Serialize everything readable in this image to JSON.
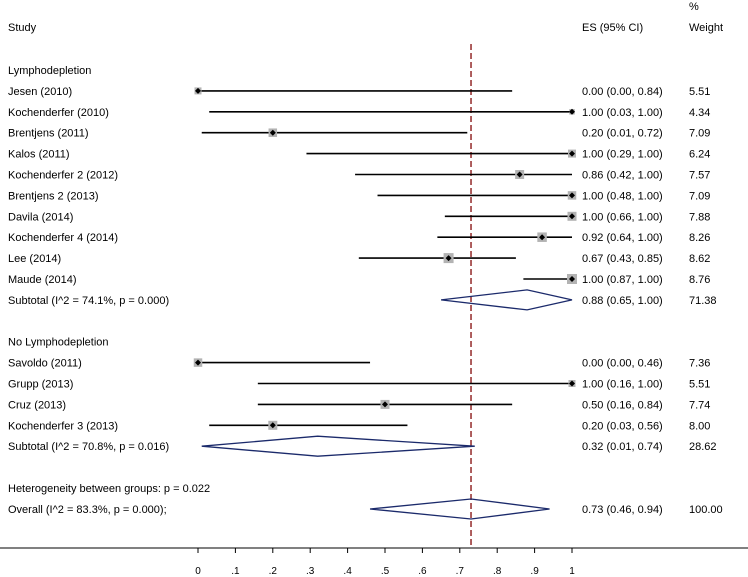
{
  "chart_data": {
    "type": "forest",
    "header": {
      "study": "Study",
      "es": "ES (95% CI)",
      "weight_top": "%",
      "weight_bottom": "Weight"
    },
    "x_ticks": [
      "0",
      ".1",
      ".2",
      ".3",
      ".4",
      ".5",
      ".6",
      ".7",
      ".8",
      ".9",
      "1"
    ],
    "xlim": [
      0,
      1
    ],
    "overall_line_x": 0.73,
    "groups": [
      {
        "name": "Lymphodepletion",
        "studies": [
          {
            "label": "Jesen (2010)",
            "es": 0.0,
            "lo": 0.0,
            "hi": 0.84,
            "ci_text": "0.00 (0.00, 0.84)",
            "weight": "5.51",
            "box": 0.7
          },
          {
            "label": "Kochenderfer (2010)",
            "es": 1.0,
            "lo": 0.03,
            "hi": 1.0,
            "ci_text": "1.00 (0.03, 1.00)",
            "weight": "4.34",
            "box": 0.55
          },
          {
            "label": "Brentjens (2011)",
            "es": 0.2,
            "lo": 0.01,
            "hi": 0.72,
            "ci_text": "0.20 (0.01, 0.72)",
            "weight": "7.09",
            "box": 0.85
          },
          {
            "label": "Kalos (2011)",
            "es": 1.0,
            "lo": 0.29,
            "hi": 1.0,
            "ci_text": "1.00 (0.29, 1.00)",
            "weight": "6.24",
            "box": 0.8
          },
          {
            "label": "Kochenderfer 2 (2012)",
            "es": 0.86,
            "lo": 0.42,
            "hi": 1.0,
            "ci_text": "0.86 (0.42, 1.00)",
            "weight": "7.57",
            "box": 0.9
          },
          {
            "label": "Brentjens 2 (2013)",
            "es": 1.0,
            "lo": 0.48,
            "hi": 1.0,
            "ci_text": "1.00 (0.48, 1.00)",
            "weight": "7.09",
            "box": 0.85
          },
          {
            "label": "Davila (2014)",
            "es": 1.0,
            "lo": 0.66,
            "hi": 1.0,
            "ci_text": "1.00 (0.66, 1.00)",
            "weight": "7.88",
            "box": 0.9
          },
          {
            "label": "Kochenderfer 4 (2014)",
            "es": 0.92,
            "lo": 0.64,
            "hi": 1.0,
            "ci_text": "0.92 (0.64, 1.00)",
            "weight": "8.26",
            "box": 0.95
          },
          {
            "label": "Lee (2014)",
            "es": 0.67,
            "lo": 0.43,
            "hi": 0.85,
            "ci_text": "0.67 (0.43, 0.85)",
            "weight": "8.62",
            "box": 1.0
          },
          {
            "label": "Maude (2014)",
            "es": 1.0,
            "lo": 0.87,
            "hi": 1.0,
            "ci_text": "1.00 (0.87, 1.00)",
            "weight": "8.76",
            "box": 1.0
          }
        ],
        "subtotal": {
          "label": "Subtotal  (I^2 = 74.1%, p = 0.000)",
          "es": 0.88,
          "lo": 0.65,
          "hi": 1.0,
          "ci_text": "0.88 (0.65, 1.00)",
          "weight": "71.38"
        }
      },
      {
        "name": "No Lymphodepletion",
        "studies": [
          {
            "label": "Savoldo (2011)",
            "es": 0.0,
            "lo": 0.0,
            "hi": 0.46,
            "ci_text": "0.00 (0.00, 0.46)",
            "weight": "7.36",
            "box": 0.85
          },
          {
            "label": "Grupp (2013)",
            "es": 1.0,
            "lo": 0.16,
            "hi": 1.0,
            "ci_text": "1.00 (0.16, 1.00)",
            "weight": "5.51",
            "box": 0.7
          },
          {
            "label": "Cruz (2013)",
            "es": 0.5,
            "lo": 0.16,
            "hi": 0.84,
            "ci_text": "0.50 (0.16, 0.84)",
            "weight": "7.74",
            "box": 0.9
          },
          {
            "label": "Kochenderfer 3 (2013)",
            "es": 0.2,
            "lo": 0.03,
            "hi": 0.56,
            "ci_text": "0.20 (0.03, 0.56)",
            "weight": "8.00",
            "box": 0.9
          }
        ],
        "subtotal": {
          "label": "Subtotal  (I^2 = 70.8%, p = 0.016)",
          "es": 0.32,
          "lo": 0.01,
          "hi": 0.74,
          "ci_text": "0.32 (0.01, 0.74)",
          "weight": "28.62"
        }
      }
    ],
    "heterogeneity": "Heterogeneity between groups: p = 0.022",
    "overall": {
      "label": "Overall  (I^2 = 83.3%, p = 0.000);",
      "es": 0.73,
      "lo": 0.46,
      "hi": 0.94,
      "ci_text": "0.73 (0.46, 0.94)",
      "weight": "100.00"
    },
    "colors": {
      "ci_line": "#000000",
      "box": "#b3b3b3",
      "point": "#000000",
      "diamond": "#1b2a6b",
      "ref_line": "#8b1a1a",
      "axis": "#000000"
    }
  }
}
